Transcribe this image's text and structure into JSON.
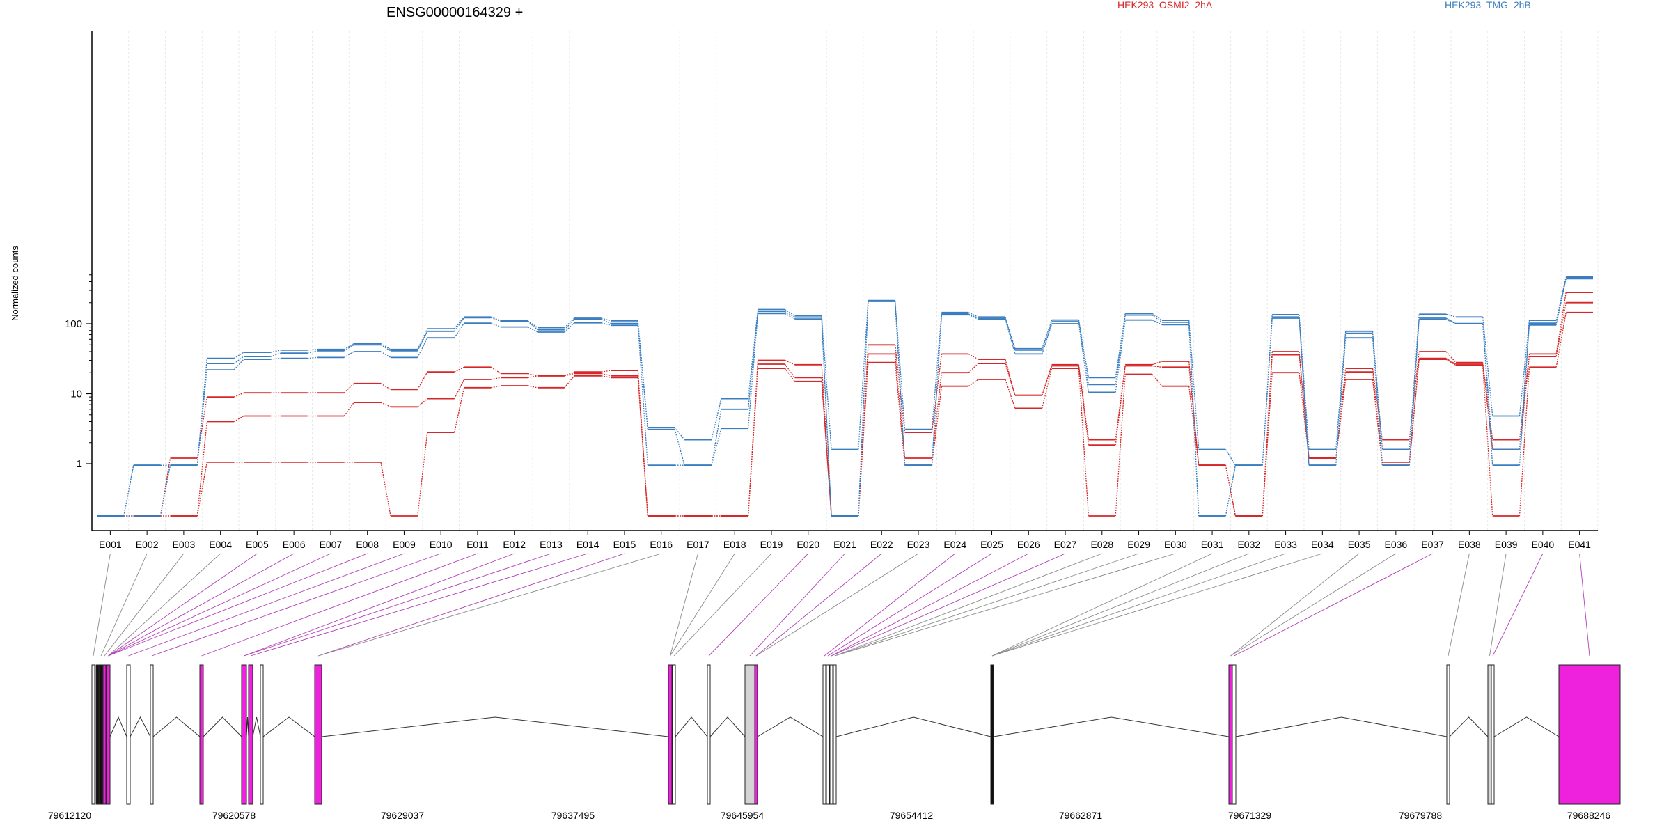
{
  "chart_data": {
    "type": "line",
    "title": "ENSG00000164329 +",
    "ylabel": "Normalized counts",
    "yscale": "log",
    "ylim": [
      0.5,
      600
    ],
    "yticks": [
      1,
      10,
      100
    ],
    "ytick_labels": [
      "1",
      "10",
      "100"
    ],
    "categories": [
      "E001",
      "E002",
      "E003",
      "E004",
      "E005",
      "E006",
      "E007",
      "E008",
      "E009",
      "E010",
      "E011",
      "E012",
      "E013",
      "E014",
      "E015",
      "E016",
      "E017",
      "E018",
      "E019",
      "E020",
      "E021",
      "E022",
      "E023",
      "E024",
      "E025",
      "E026",
      "E027",
      "E028",
      "E029",
      "E030",
      "E031",
      "E032",
      "E033",
      "E034",
      "E035",
      "E036",
      "E037",
      "E038",
      "E039",
      "E040",
      "E041"
    ],
    "legend": [
      {
        "label": "HEK293_OSMI2_2hA",
        "color": "#d62728"
      },
      {
        "label": "HEK293_TMG_2hB",
        "color": "#3a7ebf"
      }
    ],
    "series": [
      {
        "group": "HEK293_OSMI2_2hA",
        "color": "#d62728",
        "values": [
          0.5,
          0.5,
          1.2,
          9,
          10.3,
          10.3,
          10.3,
          14,
          11.5,
          20.5,
          24,
          19.5,
          18,
          20.5,
          21.5,
          0.5,
          0.5,
          0.5,
          30,
          26,
          0.5,
          50,
          2.8,
          37,
          31,
          9.5,
          26,
          2.2,
          26,
          29,
          0.95,
          0.5,
          40,
          1.2,
          23,
          2.2,
          40,
          28,
          2.2,
          37,
          280
        ]
      },
      {
        "group": "HEK293_OSMI2_2hA",
        "color": "#d62728",
        "values": [
          0.5,
          0.5,
          0.5,
          4,
          4.8,
          4.8,
          4.8,
          7.5,
          6.5,
          8.5,
          16,
          17,
          18,
          19.5,
          18,
          0.5,
          0.5,
          0.5,
          26.5,
          17,
          0.5,
          37,
          1.2,
          20,
          27,
          9.5,
          25,
          1.85,
          25,
          24,
          0.95,
          0.5,
          36,
          1.2,
          20.5,
          1.05,
          32,
          26.5,
          1.6,
          34,
          200
        ]
      },
      {
        "group": "HEK293_OSMI2_2hA",
        "color": "#d62728",
        "values": [
          0.5,
          0.5,
          0.5,
          1.05,
          1.05,
          1.05,
          1.05,
          1.05,
          0.5,
          2.8,
          12.2,
          13,
          12.2,
          18,
          17,
          0.5,
          0.5,
          0.5,
          23,
          15,
          0.5,
          28,
          0.95,
          12.8,
          16,
          6.2,
          23,
          0.5,
          19,
          12.8,
          0.95,
          0.5,
          20,
          1.2,
          16,
          0.95,
          31,
          25.5,
          0.5,
          24,
          145
        ]
      },
      {
        "group": "HEK293_TMG_2hB",
        "color": "#3a7ebf",
        "values": [
          0.5,
          0.95,
          0.95,
          32,
          39,
          42,
          43,
          52,
          43,
          85,
          125,
          110,
          88,
          120,
          110,
          3.3,
          2.2,
          8.5,
          160,
          130,
          1.6,
          215,
          3.1,
          145,
          125,
          44,
          113,
          17,
          140,
          112,
          1.6,
          0.95,
          135,
          1.6,
          78,
          1.6,
          137,
          125,
          4.8,
          112,
          465
        ]
      },
      {
        "group": "HEK293_TMG_2hB",
        "color": "#3a7ebf",
        "values": [
          0.5,
          0.95,
          0.95,
          27,
          34,
          38,
          41,
          50,
          41,
          78,
          122,
          108,
          82,
          116,
          101,
          3.1,
          0.95,
          6,
          150,
          124,
          0.5,
          210,
          0.95,
          138,
          120,
          42,
          107,
          13.5,
          133,
          105,
          0.5,
          0.95,
          125,
          0.95,
          73,
          1.6,
          120,
          101,
          1.6,
          102,
          450
        ]
      },
      {
        "group": "HEK293_TMG_2hB",
        "color": "#3a7ebf",
        "values": [
          0.5,
          0.5,
          0.95,
          22,
          31,
          32,
          33,
          40,
          33,
          63,
          102,
          90,
          76,
          103,
          95,
          0.95,
          0.95,
          3.2,
          140,
          117,
          0.5,
          208,
          0.95,
          134,
          116,
          37,
          100,
          10.5,
          113,
          97,
          0.5,
          0.95,
          120,
          0.95,
          63,
          0.95,
          115,
          100,
          0.95,
          96,
          440
        ]
      }
    ],
    "gene_model": {
      "coordinate_labels": [
        "79612120",
        "79620578",
        "79629037",
        "79637495",
        "79645954",
        "79654412",
        "79662871",
        "79671329",
        "79679788",
        "79688246"
      ],
      "highlight_color": "#ee22dd",
      "neutral_color": "#d4d4d4"
    }
  }
}
